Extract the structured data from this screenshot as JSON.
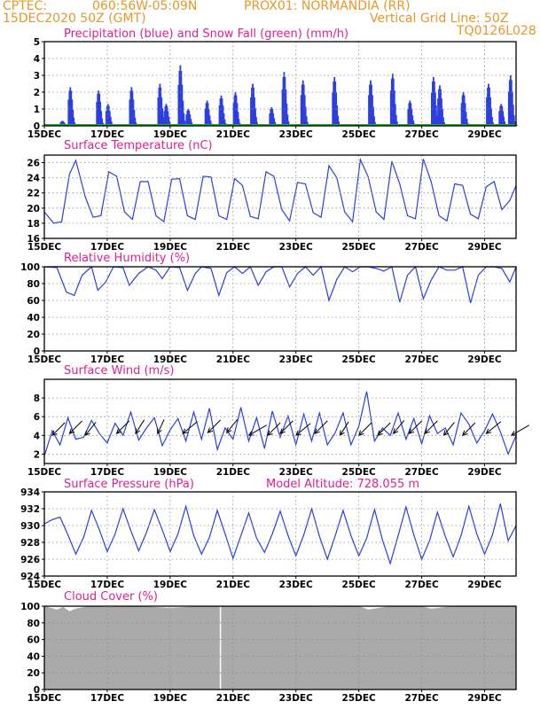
{
  "header": {
    "line1_left": "CPTEC:",
    "coords": "060:56W-05:09N",
    "station": "PROX01: NORMANDIA (RR)",
    "datetime": "15DEC2020 50Z (GMT)",
    "grid_note": "Vertical Grid Line: 50Z",
    "run_code": "TQ0126L028"
  },
  "colors": {
    "header": "#e8962a",
    "titles": "#e0208e",
    "series": "#2c3fe0",
    "snow": "#22aa22",
    "cloud": "#aaaaaa"
  },
  "chart_data": [
    {
      "id": "precip",
      "type": "bar",
      "title": "Precipitation (blue) and Snow Fall (green) (mm/h)",
      "ylim": [
        0,
        5
      ],
      "yticks": [
        0,
        1,
        2,
        3,
        4,
        5
      ],
      "x_ticks": [
        "15DEC",
        "17DEC",
        "19DEC",
        "21DEC",
        "23DEC",
        "25DEC",
        "27DEC",
        "29DEC"
      ],
      "x_range_days": [
        0,
        15
      ],
      "series": [
        {
          "color": "#2c3fe0",
          "bursts": [
            {
              "day": 0.55,
              "peak": 0.3
            },
            {
              "day": 0.8,
              "peak": 2.3
            },
            {
              "day": 1.7,
              "peak": 2.1
            },
            {
              "day": 2.0,
              "peak": 1.3
            },
            {
              "day": 2.75,
              "peak": 2.3
            },
            {
              "day": 3.65,
              "peak": 2.5
            },
            {
              "day": 3.85,
              "peak": 1.3
            },
            {
              "day": 4.3,
              "peak": 3.6
            },
            {
              "day": 4.55,
              "peak": 1.0
            },
            {
              "day": 5.15,
              "peak": 1.5
            },
            {
              "day": 5.6,
              "peak": 1.8
            },
            {
              "day": 6.05,
              "peak": 2.0
            },
            {
              "day": 6.6,
              "peak": 2.5
            },
            {
              "day": 7.2,
              "peak": 1.1
            },
            {
              "day": 7.6,
              "peak": 3.2
            },
            {
              "day": 8.2,
              "peak": 2.7
            },
            {
              "day": 9.2,
              "peak": 2.9
            },
            {
              "day": 10.35,
              "peak": 2.7
            },
            {
              "day": 11.05,
              "peak": 3.1
            },
            {
              "day": 11.6,
              "peak": 1.5
            },
            {
              "day": 12.35,
              "peak": 2.9
            },
            {
              "day": 12.55,
              "peak": 2.4
            },
            {
              "day": 13.3,
              "peak": 2.0
            },
            {
              "day": 14.1,
              "peak": 2.5
            },
            {
              "day": 14.5,
              "peak": 1.3
            },
            {
              "day": 14.8,
              "peak": 3.0
            }
          ]
        },
        {
          "color": "#22aa22",
          "bursts": []
        }
      ]
    },
    {
      "id": "temp",
      "type": "line",
      "title": "Surface Temperature (nC)",
      "ylim": [
        16,
        27
      ],
      "yticks": [
        16,
        18,
        20,
        22,
        24,
        26
      ],
      "x_ticks": [
        "15DEC",
        "17DEC",
        "19DEC",
        "21DEC",
        "23DEC",
        "25DEC",
        "27DEC",
        "29DEC"
      ],
      "x_range_days": [
        0,
        15
      ],
      "series": [
        {
          "color": "#2c3fe0",
          "x": [
            0,
            0.3,
            0.55,
            0.8,
            1.0,
            1.3,
            1.55,
            1.8,
            2.05,
            2.3,
            2.55,
            2.8,
            3.05,
            3.3,
            3.55,
            3.8,
            4.05,
            4.3,
            4.55,
            4.8,
            5.05,
            5.3,
            5.55,
            5.8,
            6.05,
            6.3,
            6.55,
            6.8,
            7.05,
            7.3,
            7.55,
            7.8,
            8.05,
            8.3,
            8.55,
            8.8,
            9.05,
            9.3,
            9.55,
            9.8,
            10.05,
            10.3,
            10.55,
            10.8,
            11.05,
            11.3,
            11.55,
            11.8,
            12.05,
            12.3,
            12.55,
            12.8,
            13.05,
            13.3,
            13.55,
            13.8,
            14.05,
            14.3,
            14.55,
            14.8,
            15.0
          ],
          "y": [
            19.5,
            18.0,
            18.2,
            24.5,
            26.3,
            21.5,
            18.8,
            19.0,
            24.8,
            24.2,
            19.5,
            18.5,
            23.5,
            23.5,
            19.0,
            18.2,
            23.8,
            23.9,
            19.0,
            18.5,
            24.2,
            24.1,
            19.0,
            18.5,
            23.9,
            23.0,
            18.9,
            18.6,
            24.8,
            24.2,
            19.8,
            18.3,
            23.4,
            23.2,
            19.4,
            18.8,
            25.6,
            24.0,
            19.5,
            18.2,
            26.4,
            24.1,
            19.5,
            18.5,
            26.2,
            23.2,
            19.0,
            18.6,
            26.5,
            23.5,
            19.0,
            18.3,
            23.2,
            23.0,
            19.2,
            18.6,
            22.8,
            23.5,
            19.8,
            21.0,
            23.0
          ]
        }
      ]
    },
    {
      "id": "rh",
      "type": "line",
      "title": "Relative Humidity (%)",
      "ylim": [
        0,
        100
      ],
      "yticks": [
        0,
        20,
        40,
        60,
        80,
        100
      ],
      "x_ticks": [
        "15DEC",
        "17DEC",
        "19DEC",
        "21DEC",
        "23DEC",
        "25DEC",
        "27DEC",
        "29DEC"
      ],
      "x_range_days": [
        0,
        15
      ],
      "series": [
        {
          "color": "#2c3fe0",
          "x": [
            0,
            0.4,
            0.7,
            0.95,
            1.2,
            1.5,
            1.7,
            1.95,
            2.2,
            2.5,
            2.7,
            3.0,
            3.3,
            3.55,
            3.75,
            4.0,
            4.3,
            4.55,
            4.8,
            5.0,
            5.3,
            5.55,
            5.8,
            6.05,
            6.3,
            6.55,
            6.8,
            7.05,
            7.3,
            7.55,
            7.8,
            8.05,
            8.3,
            8.55,
            8.8,
            9.05,
            9.3,
            9.55,
            9.8,
            10.05,
            10.3,
            10.55,
            10.8,
            11.05,
            11.3,
            11.55,
            11.8,
            12.05,
            12.3,
            12.55,
            12.8,
            13.05,
            13.3,
            13.55,
            13.8,
            14.05,
            14.3,
            14.55,
            14.8,
            15.0
          ],
          "y": [
            100,
            99,
            70,
            66,
            90,
            100,
            72,
            82,
            100,
            99,
            78,
            92,
            100,
            96,
            86,
            100,
            99,
            72,
            92,
            100,
            98,
            66,
            93,
            100,
            92,
            100,
            78,
            94,
            100,
            100,
            76,
            92,
            100,
            90,
            100,
            60,
            85,
            100,
            94,
            100,
            100,
            98,
            95,
            100,
            58,
            90,
            100,
            62,
            84,
            100,
            96,
            96,
            100,
            57,
            90,
            100,
            100,
            98,
            82,
            100
          ]
        }
      ]
    },
    {
      "id": "wind",
      "type": "line",
      "title": "Surface Wind (m/s)",
      "ylim": [
        1,
        10
      ],
      "yticks": [
        2,
        4,
        6,
        8
      ],
      "x_ticks": [
        "15DEC",
        "17DEC",
        "19DEC",
        "21DEC",
        "23DEC",
        "25DEC",
        "27DEC",
        "29DEC"
      ],
      "x_range_days": [
        0,
        15
      ],
      "series": [
        {
          "color": "#2c3fe0",
          "x": [
            0,
            0.25,
            0.5,
            0.75,
            1.0,
            1.25,
            1.5,
            1.75,
            2.0,
            2.25,
            2.5,
            2.75,
            3.0,
            3.25,
            3.5,
            3.75,
            4.0,
            4.25,
            4.5,
            4.75,
            5.0,
            5.25,
            5.5,
            5.75,
            6.0,
            6.25,
            6.5,
            6.75,
            7.0,
            7.25,
            7.5,
            7.75,
            8.0,
            8.25,
            8.5,
            8.75,
            9.0,
            9.25,
            9.5,
            9.75,
            10.0,
            10.25,
            10.5,
            10.75,
            11.0,
            11.25,
            11.5,
            11.75,
            12.0,
            12.25,
            12.5,
            12.75,
            13.0,
            13.25,
            13.5,
            13.75,
            14.0,
            14.25,
            14.5,
            14.75,
            15.0
          ],
          "y": [
            1.8,
            4.5,
            3.0,
            5.9,
            3.6,
            3.8,
            5.6,
            4.2,
            3.2,
            5.3,
            4.0,
            6.5,
            3.5,
            4.8,
            5.9,
            2.9,
            4.6,
            5.8,
            3.4,
            6.5,
            3.6,
            6.9,
            2.5,
            4.8,
            3.6,
            7.0,
            3.4,
            5.9,
            2.6,
            6.6,
            3.8,
            6.1,
            3.0,
            6.3,
            3.4,
            6.4,
            3.0,
            4.3,
            6.4,
            3.0,
            5.0,
            8.7,
            3.4,
            4.8,
            4.0,
            6.4,
            3.6,
            5.8,
            3.1,
            6.1,
            4.2,
            4.8,
            3.0,
            6.4,
            5.2,
            3.2,
            4.5,
            6.3,
            4.4,
            2.0,
            4.0
          ]
        }
      ],
      "barbs": {
        "days": [
          0.25,
          0.8,
          1.3,
          2.3,
          2.9,
          3.6,
          4.4,
          5.2,
          5.8,
          6.5,
          7.1,
          7.5,
          8.0,
          8.6,
          9.4,
          10.0,
          10.6,
          11.1,
          11.6,
          12.1,
          12.7,
          13.3,
          14.05,
          14.85
        ],
        "directions_deg": [
          60,
          60,
          65,
          60,
          70,
          75,
          55,
          60,
          65,
          45,
          60,
          60,
          55,
          60,
          70,
          60,
          60,
          65,
          60,
          60,
          65,
          60,
          55,
          45
        ],
        "speeds": [
          4.0,
          4.2,
          4.0,
          4.2,
          4.2,
          4.2,
          4.2,
          4.3,
          4.3,
          4.0,
          4.0,
          4.2,
          4.0,
          4.2,
          4.0,
          4.0,
          4.0,
          4.2,
          4.2,
          4.2,
          4.0,
          4.0,
          4.2,
          4.0
        ]
      }
    },
    {
      "id": "pressure",
      "type": "line",
      "title": "Surface Pressure (hPa)",
      "annotation": "Model Altitude: 728.055 m",
      "ylim": [
        924,
        934
      ],
      "yticks": [
        924,
        926,
        928,
        930,
        932,
        934
      ],
      "x_ticks": [
        "15DEC",
        "17DEC",
        "19DEC",
        "21DEC",
        "23DEC",
        "25DEC",
        "27DEC",
        "29DEC"
      ],
      "x_range_days": [
        0,
        15
      ],
      "series": [
        {
          "color": "#2c3fe0",
          "x": [
            0,
            0.25,
            0.5,
            0.75,
            1.0,
            1.25,
            1.5,
            1.75,
            2.0,
            2.25,
            2.5,
            2.75,
            3.0,
            3.25,
            3.5,
            3.75,
            4.0,
            4.25,
            4.5,
            4.75,
            5.0,
            5.25,
            5.5,
            5.75,
            6.0,
            6.25,
            6.5,
            6.75,
            7.0,
            7.25,
            7.5,
            7.75,
            8.0,
            8.25,
            8.5,
            8.75,
            9.0,
            9.25,
            9.5,
            9.75,
            10.0,
            10.25,
            10.5,
            10.75,
            11.0,
            11.25,
            11.5,
            11.75,
            12.0,
            12.25,
            12.5,
            12.75,
            13.0,
            13.25,
            13.5,
            13.75,
            14.0,
            14.25,
            14.5,
            14.75,
            15.0
          ],
          "y": [
            930.2,
            930.7,
            931.0,
            928.9,
            926.6,
            928.6,
            931.8,
            929.5,
            926.9,
            929.0,
            932.0,
            929.4,
            927.0,
            929.2,
            931.9,
            929.5,
            926.9,
            929.0,
            932.3,
            928.8,
            926.6,
            928.6,
            931.8,
            929.0,
            926.1,
            928.8,
            931.5,
            928.5,
            926.8,
            929.0,
            931.7,
            928.8,
            926.4,
            928.9,
            932.0,
            928.7,
            926.0,
            928.8,
            931.8,
            928.8,
            926.4,
            928.5,
            931.9,
            928.3,
            925.5,
            928.8,
            932.2,
            928.9,
            926.0,
            928.2,
            931.6,
            928.7,
            926.3,
            928.8,
            932.3,
            929.0,
            926.6,
            928.9,
            932.6,
            928.2,
            930.0
          ]
        }
      ]
    },
    {
      "id": "cloud",
      "type": "area",
      "title": "Cloud Cover (%)",
      "ylim": [
        0,
        100
      ],
      "yticks": [
        0,
        20,
        40,
        60,
        80,
        100
      ],
      "x_ticks": [
        "15DEC",
        "17DEC",
        "19DEC",
        "21DEC",
        "23DEC",
        "25DEC",
        "27DEC",
        "29DEC"
      ],
      "x_range_days": [
        0,
        15
      ],
      "series": [
        {
          "color": "#aaaaaa",
          "x": [
            0,
            0.2,
            0.4,
            0.6,
            0.8,
            1.0,
            1.4,
            2.0,
            3.0,
            4.0,
            5.0,
            5.5,
            6.0,
            7.0,
            8.0,
            9.0,
            10.0,
            10.3,
            11.0,
            12.0,
            12.3,
            13.0,
            14.0,
            15.0
          ],
          "y": [
            100,
            98,
            96,
            99,
            94,
            97,
            100,
            99,
            100,
            98,
            100,
            100,
            100,
            100,
            100,
            99,
            100,
            96,
            100,
            100,
            97,
            100,
            100,
            100
          ],
          "gap_day": 5.6
        }
      ]
    }
  ]
}
